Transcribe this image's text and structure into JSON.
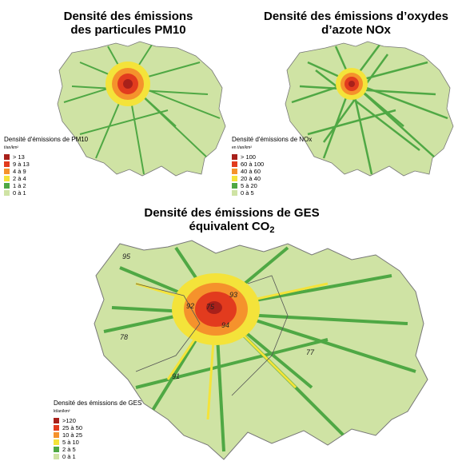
{
  "maps": [
    {
      "id": "pm10",
      "title_line1": "Densité des émissions",
      "title_line2": "des particules PM10",
      "legend_title": "Densité d'émissions de PM10",
      "legend_unit": "t/an/km²",
      "classes": [
        {
          "label": "> 13",
          "color": "#a8201a"
        },
        {
          "label": "9 à 13",
          "color": "#e23b1e"
        },
        {
          "label": "4 à  9",
          "color": "#f5922c"
        },
        {
          "label": "2 à  4",
          "color": "#f4e33a"
        },
        {
          "label": "1 à  2",
          "color": "#4fa844"
        },
        {
          "label": "0 à  1",
          "color": "#cfe3a4"
        }
      ]
    },
    {
      "id": "nox",
      "title_line1": "Densité des émissions d’oxydes",
      "title_line2": "d’azote NOx",
      "legend_title": "Densité d'émissions de NOx",
      "legend_unit": "en t/an/km²",
      "classes": [
        {
          "label": "> 100",
          "color": "#a8201a"
        },
        {
          "label": "60 à 100",
          "color": "#e23b1e"
        },
        {
          "label": "40 à  60",
          "color": "#f5922c"
        },
        {
          "label": "20 à  40",
          "color": "#f4e33a"
        },
        {
          "label": "5 à  20",
          "color": "#4fa844"
        },
        {
          "label": "0 à    5",
          "color": "#cfe3a4"
        }
      ]
    },
    {
      "id": "ges",
      "title_line1": "Densité des émissions de GES",
      "title_line2_prefix": "équivalent CO",
      "title_line2_sub": "2",
      "legend_title": "Densité des émissions de GES",
      "legend_unit": "kt/an/km²",
      "classes": [
        {
          "label": ">120",
          "color": "#a8201a"
        },
        {
          "label": "25 à 50",
          "color": "#e23b1e"
        },
        {
          "label": "10 à 25",
          "color": "#f5922c"
        },
        {
          "label": "5 à 10",
          "color": "#f4e33a"
        },
        {
          "label": "2 à   5",
          "color": "#4fa844"
        },
        {
          "label": "0 à   1",
          "color": "#cfe3a4"
        }
      ],
      "departments": [
        "95",
        "78",
        "91",
        "77",
        "92",
        "75",
        "93",
        "94"
      ]
    }
  ],
  "colors": {
    "base": "#cfe3a4",
    "border": "#777777",
    "road": "#4fa844",
    "core_hot": "#a8201a",
    "core_warm": "#e23b1e",
    "core_mid": "#f5922c",
    "core_low": "#f4e33a"
  }
}
